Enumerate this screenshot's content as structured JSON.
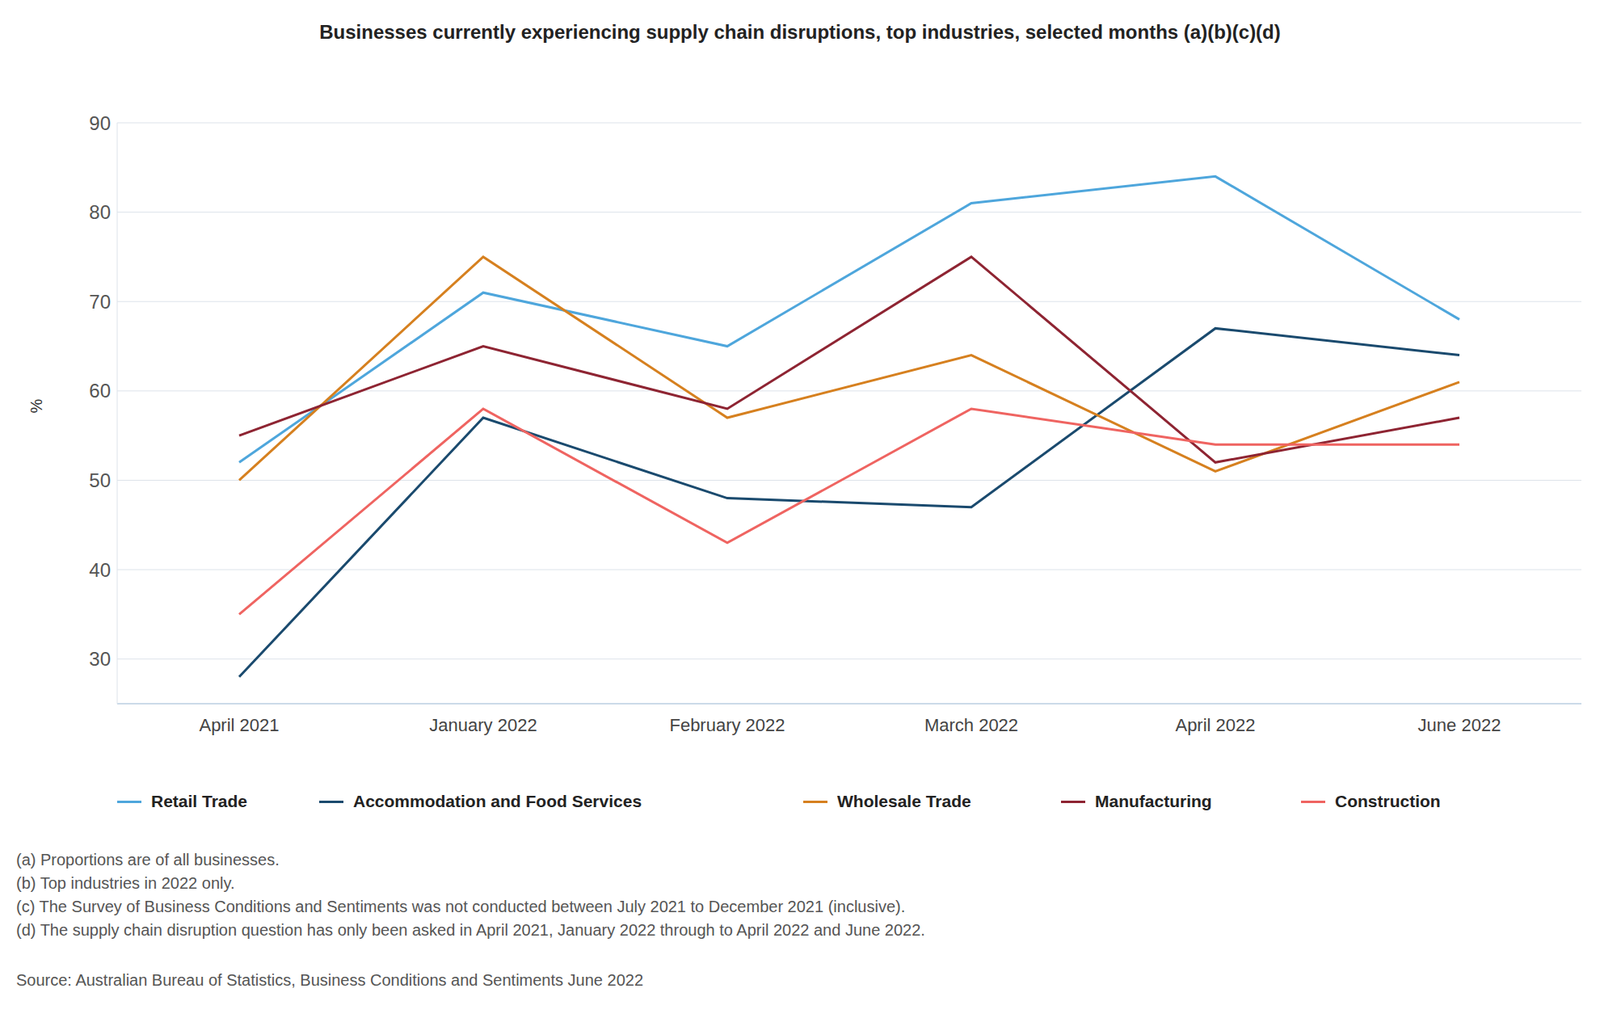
{
  "chart_data": {
    "type": "line",
    "title": "Businesses currently experiencing supply chain disruptions, top industries, selected months (a)(b)(c)(d)",
    "y_label": "%",
    "categories": [
      "April 2021",
      "January 2022",
      "February 2022",
      "March 2022",
      "April 2022",
      "June 2022"
    ],
    "series": [
      {
        "name": "Retail Trade",
        "color": "#4ea6dc",
        "values": [
          52,
          71,
          65,
          81,
          84,
          68
        ]
      },
      {
        "name": "Accommodation and Food Services",
        "color": "#1a4a6e",
        "values": [
          28,
          57,
          48,
          47,
          67,
          64
        ]
      },
      {
        "name": "Wholesale Trade",
        "color": "#d6801f",
        "values": [
          50,
          75,
          57,
          64,
          51,
          61
        ]
      },
      {
        "name": "Manufacturing",
        "color": "#8e2432",
        "values": [
          55,
          65,
          58,
          75,
          52,
          57
        ]
      },
      {
        "name": "Construction",
        "color": "#ef6461",
        "values": [
          35,
          58,
          43,
          58,
          54,
          54
        ]
      }
    ],
    "ylim": [
      25,
      90
    ],
    "yticks": [
      30,
      40,
      50,
      60,
      70,
      80,
      90
    ],
    "grid": true,
    "legend": "bottom",
    "notes": [
      "(a) Proportions are of all businesses.",
      "(b) Top industries in 2022 only.",
      "(c) The Survey of Business Conditions and Sentiments was not conducted between July 2021 to December 2021 (inclusive).",
      "(d) The supply chain disruption question has only been asked in April 2021, January 2022 through to April 2022 and June 2022."
    ],
    "source": "Source: Australian Bureau of Statistics, Business Conditions and Sentiments June 2022"
  }
}
